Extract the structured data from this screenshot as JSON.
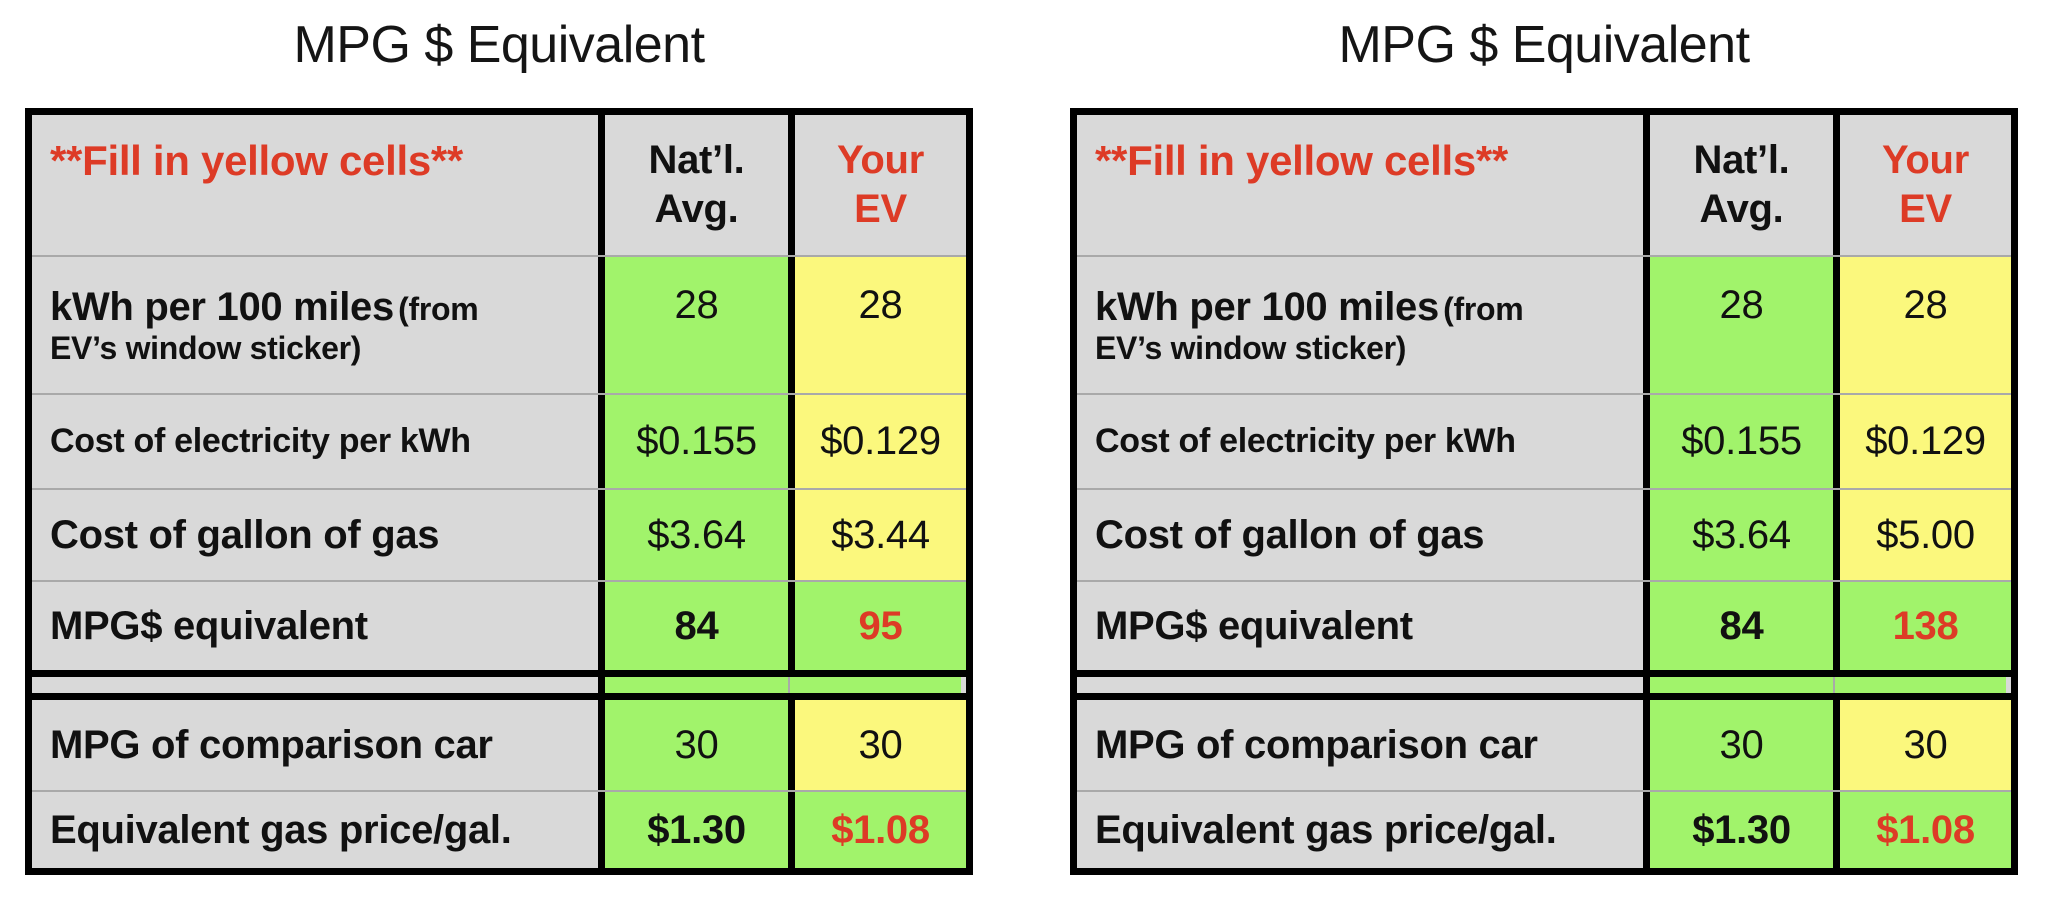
{
  "colors": {
    "green": "#a1f36b",
    "yellow": "#fbf87d",
    "gray": "#d9d9d9",
    "red": "#dd3b26",
    "divider": "#a9a9a9",
    "border": "#000000"
  },
  "tables": {
    "left": {
      "title": "MPG $ Equivalent",
      "header": {
        "note": "**Fill in yellow cells**",
        "natl_line1": "Nat’l.",
        "natl_line2": "Avg.",
        "ev_line1": "Your",
        "ev_line2": "EV"
      },
      "rows": {
        "kwh": {
          "label_main": "kWh per 100 miles",
          "label_paren": "(from",
          "label_line2": "EV’s window sticker)",
          "natl": "28",
          "ev": "28"
        },
        "electricity": {
          "label": "Cost of electricity per kWh",
          "natl": "$0.155",
          "ev": "$0.129"
        },
        "gas": {
          "label": "Cost of gallon of gas",
          "natl": "$3.64",
          "ev": "$3.44"
        },
        "mpg": {
          "label": "MPG$ equivalent",
          "natl": "84",
          "ev": "95"
        },
        "comparison": {
          "label": "MPG of comparison car",
          "natl": "30",
          "ev": "30"
        },
        "equivalent": {
          "label": "Equivalent gas price/gal.",
          "natl": "$1.30",
          "ev": "$1.08"
        }
      }
    },
    "right": {
      "title": "MPG $ Equivalent",
      "header": {
        "note": "**Fill in yellow cells**",
        "natl_line1": "Nat’l.",
        "natl_line2": "Avg.",
        "ev_line1": "Your",
        "ev_line2": "EV"
      },
      "rows": {
        "kwh": {
          "label_main": "kWh per 100 miles",
          "label_paren": "(from",
          "label_line2": "EV’s window sticker)",
          "natl": "28",
          "ev": "28"
        },
        "electricity": {
          "label": "Cost of electricity per kWh",
          "natl": "$0.155",
          "ev": "$0.129"
        },
        "gas": {
          "label": "Cost of gallon of gas",
          "natl": "$3.64",
          "ev": "$5.00"
        },
        "mpg": {
          "label": "MPG$ equivalent",
          "natl": "84",
          "ev": "138"
        },
        "comparison": {
          "label": "MPG of comparison car",
          "natl": "30",
          "ev": "30"
        },
        "equivalent": {
          "label": "Equivalent gas price/gal.",
          "natl": "$1.30",
          "ev": "$1.08"
        }
      }
    }
  }
}
